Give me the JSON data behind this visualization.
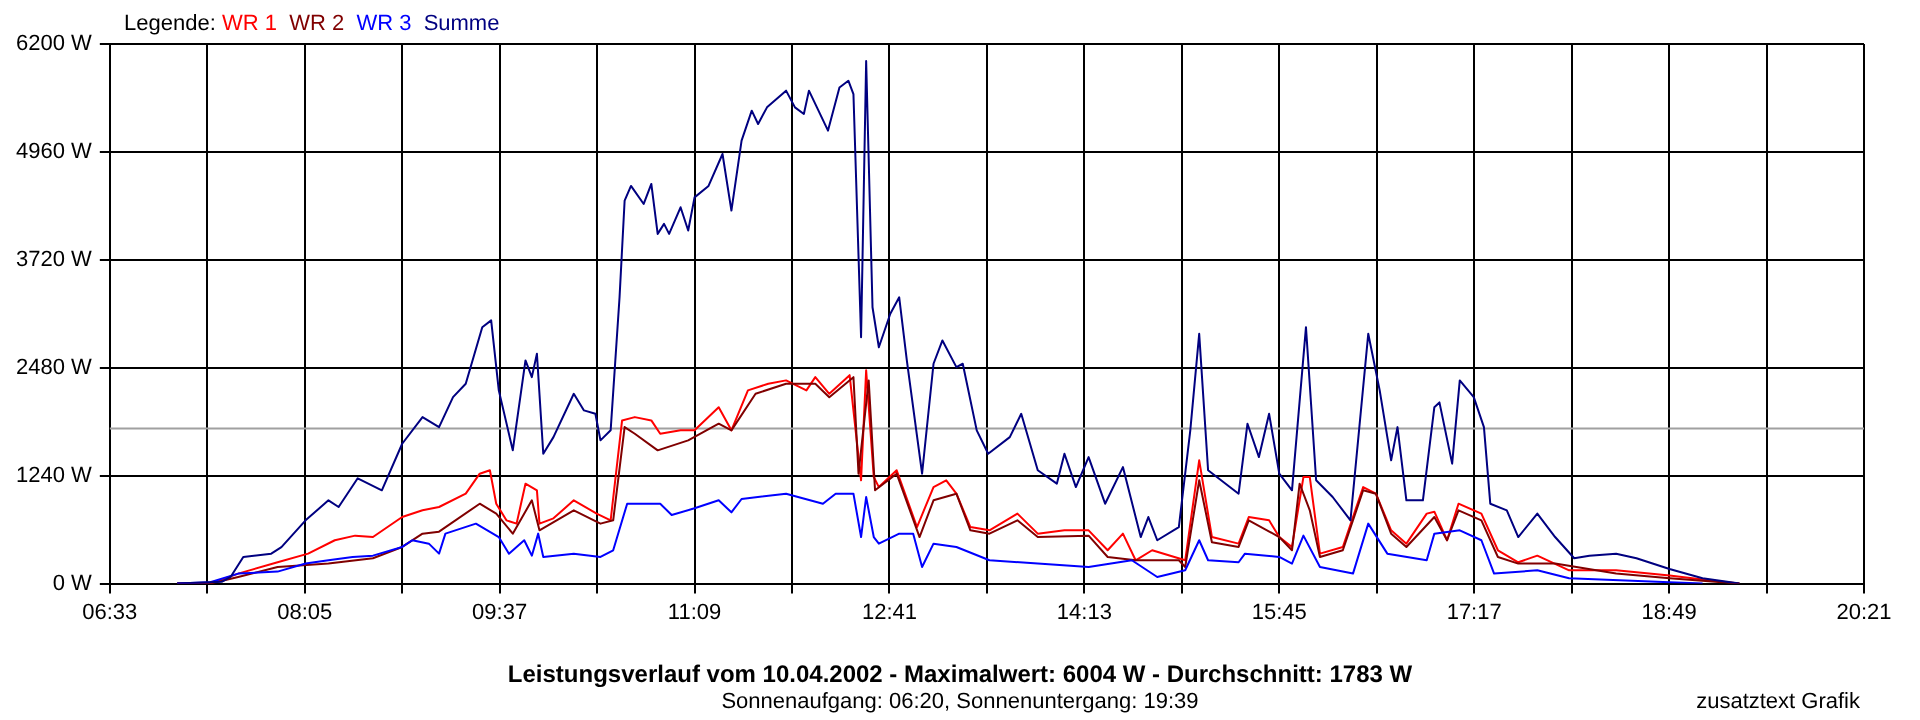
{
  "chart_data": {
    "type": "line",
    "title": "Leistungsverlauf vom 10.04.2002 - Maximalwert: 6004 W - Durchschnitt: 1783 W",
    "subtitle": "Sonnenaufgang: 06:20, Sonnenuntergang: 19:39",
    "legend_title": "Legende:",
    "annotations": [
      "zusatztext Grafik"
    ],
    "legend": "top left",
    "grid": true,
    "marker": "none",
    "line_style": "solid",
    "xlim": [
      6.55,
      20.35
    ],
    "xticks": [
      {
        "value": 6.55,
        "label": "06:33"
      },
      {
        "value": 7.3167,
        "label": null
      },
      {
        "value": 8.0833,
        "label": "08:05"
      },
      {
        "value": 8.85,
        "label": null
      },
      {
        "value": 9.6167,
        "label": "09:37"
      },
      {
        "value": 10.3833,
        "label": null
      },
      {
        "value": 11.15,
        "label": "11:09"
      },
      {
        "value": 11.9167,
        "label": null
      },
      {
        "value": 12.6833,
        "label": "12:41"
      },
      {
        "value": 13.45,
        "label": null
      },
      {
        "value": 14.2167,
        "label": "14:13"
      },
      {
        "value": 14.9833,
        "label": null
      },
      {
        "value": 15.75,
        "label": "15:45"
      },
      {
        "value": 16.5167,
        "label": null
      },
      {
        "value": 17.2833,
        "label": "17:17"
      },
      {
        "value": 18.05,
        "label": null
      },
      {
        "value": 18.8167,
        "label": "18:49"
      },
      {
        "value": 19.5833,
        "label": null
      },
      {
        "value": 20.35,
        "label": "20:21"
      }
    ],
    "ylim": [
      0,
      6200
    ],
    "yticks": [
      {
        "value": 0,
        "label": "0 W"
      },
      {
        "value": 1240,
        "label": "1240 W"
      },
      {
        "value": 2480,
        "label": "2480 W"
      },
      {
        "value": 3720,
        "label": "3720 W"
      },
      {
        "value": 4960,
        "label": "4960 W"
      },
      {
        "value": 6200,
        "label": "6200 W"
      }
    ],
    "ref_lines": [
      {
        "axis": "y",
        "value": 1783,
        "color": "#a0a0a0"
      }
    ],
    "series": [
      {
        "name": "WR 1",
        "color": "#ff0000",
        "x": [
          7.08,
          7.34,
          7.56,
          7.87,
          8.11,
          8.32,
          8.48,
          8.62,
          8.85,
          9.01,
          9.14,
          9.35,
          9.46,
          9.54,
          9.59,
          9.67,
          9.75,
          9.82,
          9.91,
          9.93,
          10.04,
          10.2,
          10.38,
          10.49,
          10.58,
          10.68,
          10.81,
          10.88,
          11.04,
          11.15,
          11.34,
          11.44,
          11.57,
          11.73,
          11.87,
          12.03,
          12.1,
          12.21,
          12.37,
          12.42,
          12.46,
          12.5,
          12.56,
          12.6,
          12.74,
          12.9,
          13.03,
          13.13,
          13.21,
          13.32,
          13.47,
          13.69,
          13.85,
          14.06,
          14.25,
          14.4,
          14.52,
          14.62,
          14.75,
          15.01,
          15.12,
          15.22,
          15.43,
          15.51,
          15.67,
          15.75,
          15.85,
          15.94,
          15.99,
          16.07,
          16.25,
          16.41,
          16.51,
          16.63,
          16.75,
          16.91,
          16.97,
          17.07,
          17.16,
          17.34,
          17.47,
          17.63,
          17.78,
          18.03,
          18.4,
          18.82,
          19.13,
          19.37
        ],
        "values": [
          0,
          0,
          115,
          245,
          344,
          498,
          551,
          535,
          765,
          842,
          880,
          1033,
          1263,
          1302,
          918,
          727,
          689,
          1148,
          1072,
          689,
          750,
          957,
          804,
          727,
          1875,
          1913,
          1875,
          1722,
          1761,
          1761,
          2027,
          1761,
          2220,
          2296,
          2335,
          2220,
          2372,
          2181,
          2395,
          1722,
          1187,
          2450,
          1224,
          1109,
          1302,
          650,
          1109,
          1187,
          1033,
          650,
          612,
          804,
          574,
          612,
          612,
          383,
          574,
          268,
          383,
          268,
          1416,
          535,
          459,
          765,
          727,
          535,
          421,
          1224,
          1224,
          344,
          421,
          1109,
          1033,
          612,
          459,
          804,
          826,
          498,
          918,
          804,
          383,
          245,
          321,
          153,
          153,
          92,
          38,
          0
        ]
      },
      {
        "name": "WR 2",
        "color": "#800000",
        "x": [
          7.08,
          7.34,
          7.56,
          7.87,
          8.27,
          8.62,
          8.85,
          9.01,
          9.14,
          9.46,
          9.59,
          9.72,
          9.87,
          9.93,
          10.2,
          10.41,
          10.51,
          10.6,
          10.68,
          10.86,
          11.1,
          11.34,
          11.44,
          11.63,
          11.87,
          12.1,
          12.21,
          12.4,
          12.44,
          12.52,
          12.57,
          12.74,
          12.92,
          13.03,
          13.21,
          13.32,
          13.47,
          13.69,
          13.85,
          14.25,
          14.4,
          14.62,
          14.96,
          15.01,
          15.12,
          15.22,
          15.43,
          15.51,
          15.75,
          15.85,
          15.91,
          15.99,
          16.07,
          16.25,
          16.41,
          16.51,
          16.63,
          16.75,
          16.97,
          17.07,
          17.16,
          17.34,
          17.47,
          17.63,
          17.92,
          18.4,
          18.82,
          19.37
        ],
        "values": [
          0,
          0,
          76,
          191,
          230,
          291,
          421,
          574,
          597,
          918,
          804,
          574,
          957,
          612,
          842,
          689,
          727,
          1798,
          1722,
          1531,
          1646,
          1837,
          1761,
          2181,
          2296,
          2296,
          2142,
          2372,
          1263,
          2335,
          1072,
          1263,
          535,
          957,
          1033,
          612,
          574,
          727,
          535,
          551,
          306,
          268,
          268,
          191,
          1187,
          475,
          421,
          727,
          535,
          383,
          1148,
          842,
          306,
          383,
          1072,
          1033,
          574,
          421,
          765,
          498,
          842,
          727,
          306,
          230,
          230,
          115,
          61,
          0
        ]
      },
      {
        "name": "WR 3",
        "color": "#0000ff",
        "x": [
          7.08,
          7.34,
          7.56,
          7.87,
          8.09,
          8.27,
          8.46,
          8.62,
          8.85,
          8.93,
          9.06,
          9.14,
          9.19,
          9.43,
          9.61,
          9.69,
          9.81,
          9.87,
          9.92,
          9.96,
          10.2,
          10.41,
          10.51,
          10.62,
          10.88,
          10.97,
          11.15,
          11.34,
          11.44,
          11.52,
          11.87,
          12.16,
          12.26,
          12.4,
          12.46,
          12.5,
          12.56,
          12.6,
          12.76,
          12.87,
          12.94,
          13.03,
          13.21,
          13.47,
          13.85,
          14.25,
          14.59,
          14.79,
          15.01,
          15.12,
          15.19,
          15.43,
          15.48,
          15.75,
          15.85,
          15.94,
          16.07,
          16.33,
          16.45,
          16.6,
          16.91,
          16.97,
          17.17,
          17.34,
          17.44,
          17.78,
          18.03,
          18.82,
          19.08
        ],
        "values": [
          0,
          15,
          115,
          138,
          230,
          268,
          306,
          321,
          421,
          498,
          459,
          344,
          574,
          689,
          535,
          344,
          498,
          321,
          574,
          306,
          344,
          306,
          383,
          918,
          918,
          788,
          865,
          957,
          819,
          972,
          1033,
          918,
          1033,
          1033,
          535,
          995,
          535,
          459,
          574,
          574,
          191,
          459,
          421,
          268,
          230,
          191,
          268,
          76,
          153,
          498,
          268,
          245,
          344,
          306,
          230,
          551,
          191,
          115,
          689,
          344,
          268,
          574,
          612,
          498,
          115,
          153,
          61,
          15,
          0
        ]
      },
      {
        "name": "Summe",
        "color": "#000080",
        "x": [
          7.08,
          7.43,
          7.5,
          7.6,
          7.82,
          7.9,
          8.09,
          8.27,
          8.35,
          8.5,
          8.69,
          8.85,
          9.01,
          9.14,
          9.25,
          9.35,
          9.48,
          9.55,
          9.61,
          9.72,
          9.82,
          9.87,
          9.91,
          9.96,
          10.04,
          10.2,
          10.28,
          10.37,
          10.41,
          10.49,
          10.56,
          10.6,
          10.65,
          10.75,
          10.81,
          10.86,
          10.91,
          10.95,
          11.04,
          11.1,
          11.15,
          11.26,
          11.37,
          11.44,
          11.52,
          11.6,
          11.65,
          11.72,
          11.87,
          11.94,
          12.01,
          12.05,
          12.2,
          12.29,
          12.36,
          12.4,
          12.46,
          12.5,
          12.55,
          12.6,
          12.69,
          12.76,
          12.82,
          12.94,
          13.03,
          13.1,
          13.21,
          13.26,
          13.37,
          13.46,
          13.63,
          13.72,
          13.85,
          14.0,
          14.06,
          14.15,
          14.25,
          14.38,
          14.52,
          14.66,
          14.72,
          14.79,
          14.96,
          15.05,
          15.12,
          15.19,
          15.43,
          15.5,
          15.59,
          15.67,
          15.75,
          15.85,
          15.96,
          16.04,
          16.17,
          16.31,
          16.45,
          16.54,
          16.63,
          16.68,
          16.75,
          16.88,
          16.97,
          17.01,
          17.11,
          17.17,
          17.28,
          17.36,
          17.41,
          17.54,
          17.63,
          17.78,
          17.92,
          18.07,
          18.19,
          18.4,
          18.56,
          18.82,
          19.08,
          19.37
        ],
        "values": [
          0,
          20,
          76,
          305,
          344,
          420,
          727,
          957,
          880,
          1210,
          1072,
          1607,
          1913,
          1798,
          2142,
          2296,
          2946,
          3024,
          2220,
          1531,
          2564,
          2372,
          2640,
          1492,
          1683,
          2181,
          1990,
          1951,
          1646,
          1761,
          3290,
          4401,
          4569,
          4362,
          4592,
          4018,
          4133,
          4018,
          4324,
          4057,
          4438,
          4569,
          4936,
          4286,
          5090,
          5434,
          5281,
          5472,
          5664,
          5472,
          5396,
          5664,
          5205,
          5701,
          5778,
          5625,
          2831,
          6004,
          3175,
          2716,
          3100,
          3290,
          2564,
          1263,
          2526,
          2794,
          2487,
          2526,
          1761,
          1492,
          1683,
          1951,
          1302,
          1148,
          1492,
          1109,
          1454,
          918,
          1339,
          535,
          765,
          498,
          650,
          1761,
          2870,
          1302,
          1033,
          1837,
          1454,
          1951,
          1263,
          1072,
          2946,
          1187,
          995,
          727,
          2870,
          2220,
          1416,
          1798,
          957,
          957,
          2027,
          2082,
          1378,
          2335,
          2142,
          1798,
          918,
          842,
          535,
          804,
          535,
          291,
          321,
          344,
          291,
          168,
          61,
          0
        ]
      }
    ]
  }
}
